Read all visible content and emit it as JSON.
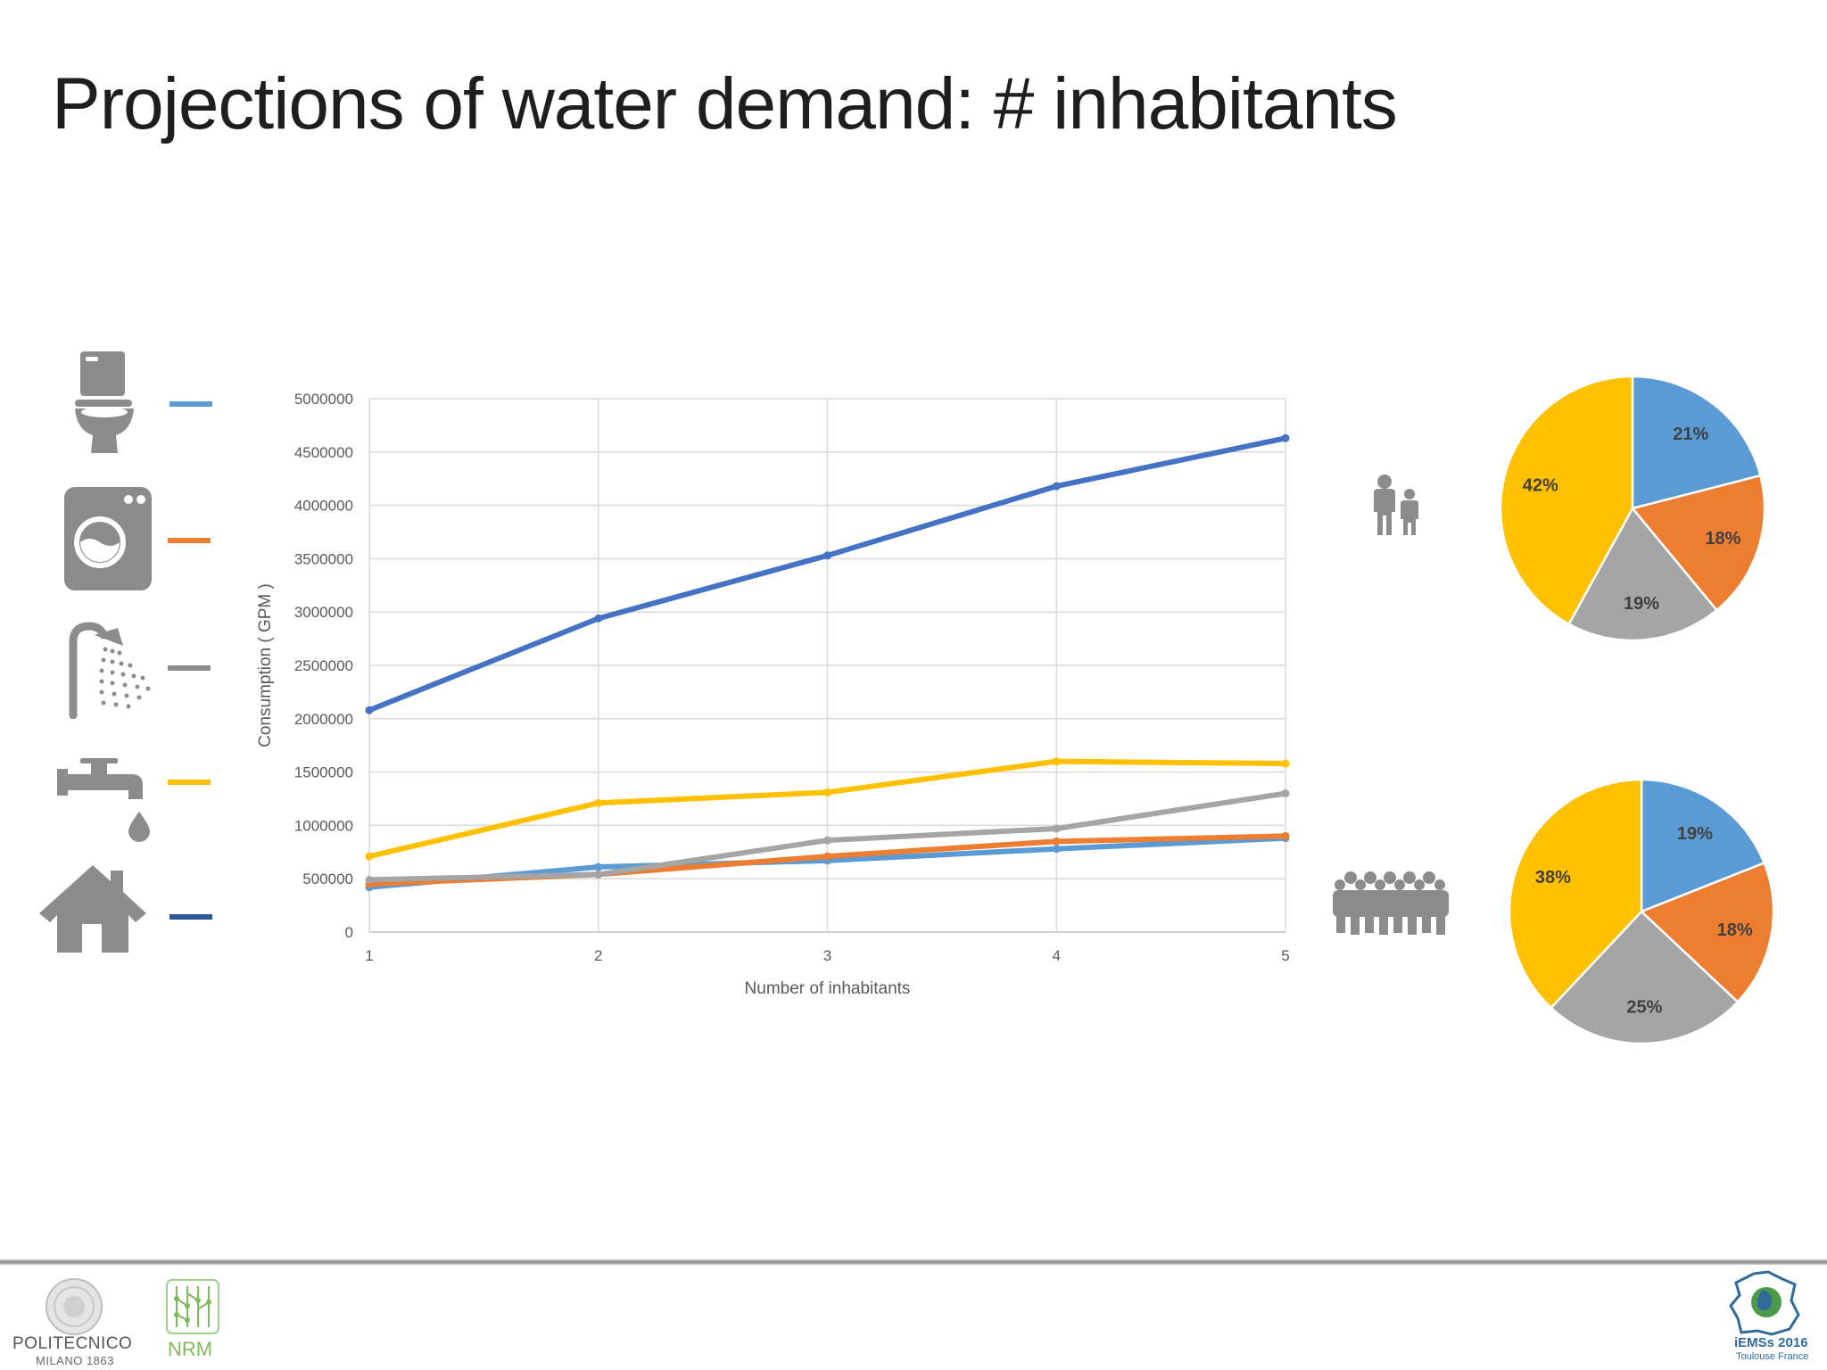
{
  "slide": {
    "title": "Projections of water demand: # inhabitants"
  },
  "legend": [
    {
      "icon": "toilet-icon",
      "color": "#5b9bd5"
    },
    {
      "icon": "washing-machine-icon",
      "color": "#ed7d31"
    },
    {
      "icon": "shower-icon",
      "color": "#8c8c8c"
    },
    {
      "icon": "faucet-icon",
      "color": "#ffc000"
    },
    {
      "icon": "house-icon",
      "color": "#2f5597"
    }
  ],
  "chart_data": [
    {
      "type": "line",
      "xlabel": "Number of inhabitants",
      "ylabel": "Consumption ( GPM )",
      "x": [
        1,
        2,
        3,
        4,
        5
      ],
      "ylim": [
        0,
        5000000
      ],
      "yticks": [
        "0",
        "500000",
        "1000000",
        "1500000",
        "2000000",
        "2500000",
        "3000000",
        "3500000",
        "4000000",
        "4500000",
        "5000000"
      ],
      "xticks": [
        "1",
        "2",
        "3",
        "4",
        "5"
      ],
      "grid": true,
      "series": [
        {
          "key": "total",
          "color": "#4472c4",
          "values": [
            2080000,
            2940000,
            3530000,
            4180000,
            4630000
          ]
        },
        {
          "key": "faucet",
          "color": "#ffc000",
          "values": [
            710000,
            1210000,
            1310000,
            1600000,
            1580000
          ]
        },
        {
          "key": "shower",
          "color": "#a5a5a5",
          "values": [
            490000,
            540000,
            860000,
            970000,
            1300000
          ]
        },
        {
          "key": "washing-machine",
          "color": "#ed7d31",
          "values": [
            450000,
            540000,
            710000,
            850000,
            900000
          ]
        },
        {
          "key": "toilet",
          "color": "#5b9bd5",
          "values": [
            420000,
            610000,
            670000,
            780000,
            880000
          ]
        }
      ]
    },
    {
      "type": "pie",
      "group_icon": "small-household-icon",
      "slices": [
        {
          "label": "21%",
          "value": 21,
          "color": "#5b9bd5"
        },
        {
          "label": "18%",
          "value": 18,
          "color": "#ed7d31"
        },
        {
          "label": "19%",
          "value": 19,
          "color": "#a5a5a5"
        },
        {
          "label": "42%",
          "value": 42,
          "color": "#ffc000"
        }
      ]
    },
    {
      "type": "pie",
      "group_icon": "large-household-icon",
      "slices": [
        {
          "label": "19%",
          "value": 19,
          "color": "#5b9bd5"
        },
        {
          "label": "18%",
          "value": 18,
          "color": "#ed7d31"
        },
        {
          "label": "25%",
          "value": 25,
          "color": "#a5a5a5"
        },
        {
          "label": "38%",
          "value": 38,
          "color": "#ffc000"
        }
      ]
    }
  ],
  "footer": {
    "polimi_name": "POLITECNICO",
    "polimi_sub": "MILANO 1863",
    "nrm_name": "NRM",
    "iemss_name": "iEMSs 2016",
    "iemss_sub": "Toulouse France"
  }
}
